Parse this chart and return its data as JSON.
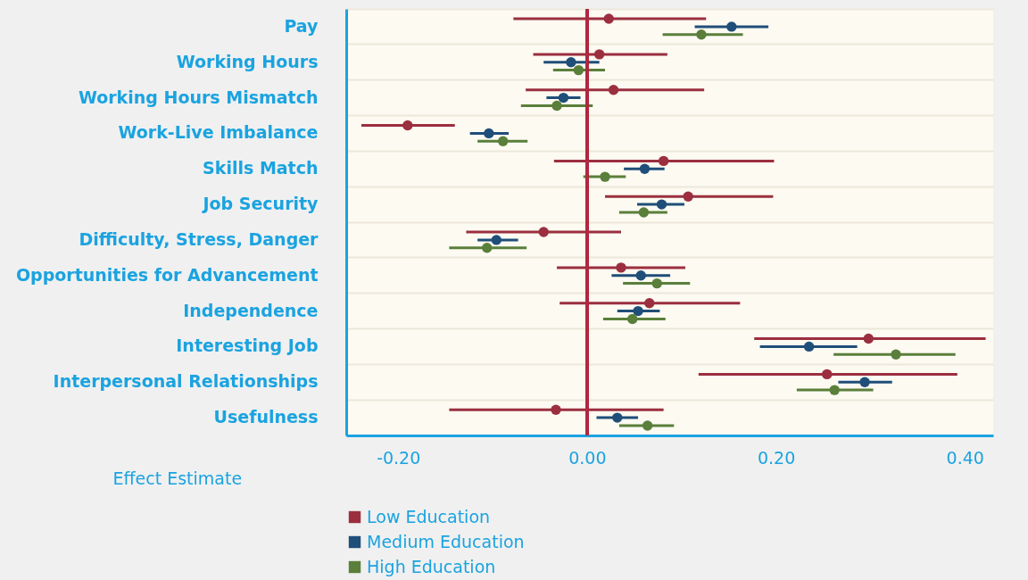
{
  "chart_data": {
    "type": "scatter",
    "orientation": "horizontal",
    "xlabel": "Effect Estimate",
    "categories": [
      "Pay",
      "Working Hours",
      "Working Hours Mismatch",
      "Work-Live Imbalance",
      "Skills Match",
      "Job Security",
      "Difficulty, Stress, Danger",
      "Opportunities for Advancement",
      "Independence",
      "Interesting Job",
      "Interpersonal Relationships",
      "Usefulness"
    ],
    "series": [
      {
        "name": "Low Education",
        "color": "#9b2f3f",
        "values": [
          0.023,
          0.013,
          0.028,
          -0.19,
          0.081,
          0.107,
          -0.046,
          0.036,
          0.066,
          0.298,
          0.254,
          -0.033
        ],
        "errors": [
          [
            -0.078,
            0.126
          ],
          [
            -0.057,
            0.085
          ],
          [
            -0.065,
            0.124
          ],
          [
            -0.239,
            -0.14
          ],
          [
            -0.035,
            0.198
          ],
          [
            0.019,
            0.197
          ],
          [
            -0.128,
            0.036
          ],
          [
            -0.032,
            0.104
          ],
          [
            -0.029,
            0.162
          ],
          [
            0.177,
            0.422
          ],
          [
            0.118,
            0.392
          ],
          [
            -0.146,
            0.081
          ]
        ]
      },
      {
        "name": "Medium Education",
        "color": "#1f4e79",
        "values": [
          0.153,
          -0.017,
          -0.025,
          -0.104,
          0.061,
          0.079,
          -0.096,
          0.057,
          0.054,
          0.235,
          0.294,
          0.032
        ],
        "errors": [
          [
            0.114,
            0.192
          ],
          [
            -0.046,
            0.013
          ],
          [
            -0.043,
            -0.007
          ],
          [
            -0.124,
            -0.083
          ],
          [
            0.039,
            0.082
          ],
          [
            0.053,
            0.103
          ],
          [
            -0.116,
            -0.073
          ],
          [
            0.026,
            0.088
          ],
          [
            0.032,
            0.077
          ],
          [
            0.183,
            0.286
          ],
          [
            0.266,
            0.323
          ],
          [
            0.01,
            0.054
          ]
        ]
      },
      {
        "name": "High Education",
        "color": "#5a7f3a",
        "values": [
          0.121,
          -0.009,
          -0.032,
          -0.089,
          0.019,
          0.06,
          -0.106,
          0.074,
          0.048,
          0.327,
          0.262,
          0.064
        ],
        "errors": [
          [
            0.08,
            0.165
          ],
          [
            -0.036,
            0.019
          ],
          [
            -0.07,
            0.006
          ],
          [
            -0.116,
            -0.063
          ],
          [
            -0.004,
            0.041
          ],
          [
            0.034,
            0.085
          ],
          [
            -0.146,
            -0.064
          ],
          [
            0.038,
            0.109
          ],
          [
            0.017,
            0.083
          ],
          [
            0.261,
            0.39
          ],
          [
            0.222,
            0.303
          ],
          [
            0.034,
            0.092
          ]
        ]
      }
    ],
    "xlim": [
      -0.255,
      0.43
    ],
    "xticks": [
      {
        "value": -0.2,
        "label": "-0.20"
      },
      {
        "value": 0,
        "label": "0.00"
      },
      {
        "value": 0.2,
        "label": "0.20"
      },
      {
        "value": 0.4,
        "label": "0.40"
      }
    ],
    "ref_lines": [
      {
        "axis": "x",
        "value": 0,
        "color": "#b0283f"
      }
    ],
    "grid": "y",
    "legend": "bottom left",
    "marker": "circle"
  }
}
